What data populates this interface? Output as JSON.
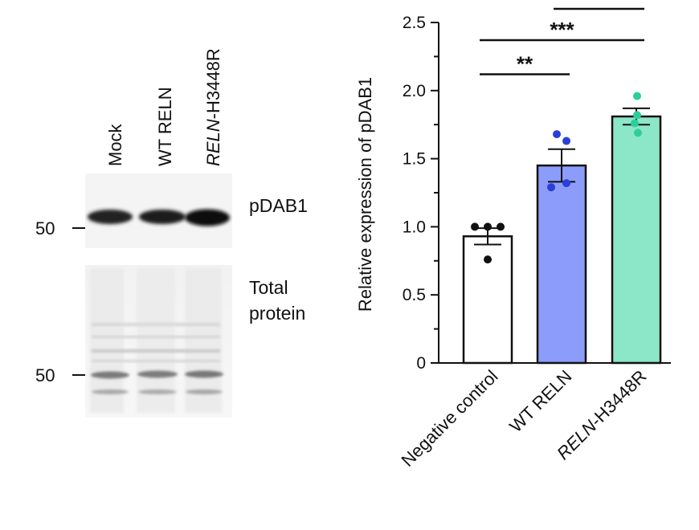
{
  "blot": {
    "lanes": [
      {
        "label": "Mock",
        "italic_part": "",
        "plain_part": "Mock"
      },
      {
        "label": "WT RELN",
        "italic_part": "",
        "plain_part": "WT RELN"
      },
      {
        "label": "RELN-H3448R",
        "italic_part": "RELN",
        "plain_part": "-H3448R"
      }
    ],
    "panels": [
      {
        "label": "pDAB1",
        "marker": "50"
      },
      {
        "label_line1": "Total",
        "label_line2": "protein",
        "marker": "50"
      }
    ]
  },
  "chart_data": {
    "type": "bar",
    "categories": [
      "Negative control",
      "WT RELN",
      "RELN-H3448R"
    ],
    "category_italic_parts": [
      "",
      "",
      "RELN"
    ],
    "category_plain_parts": [
      "Negative control",
      "WT RELN",
      "-H3448R"
    ],
    "values": [
      0.93,
      1.45,
      1.81
    ],
    "errors": [
      0.06,
      0.12,
      0.06
    ],
    "points": [
      [
        1.0,
        1.0,
        1.0,
        0.76
      ],
      [
        1.68,
        1.63,
        1.32,
        1.29
      ],
      [
        1.96,
        1.82,
        1.76,
        1.69
      ]
    ],
    "bar_colors": [
      "#ffffff",
      "#8c9cfa",
      "#8ce6c8"
    ],
    "point_colors": [
      "#111111",
      "#2b3fd6",
      "#2bcf9a"
    ],
    "ylabel": "Relative expression of pDAB1",
    "xlabel": "",
    "ylim": [
      0,
      2.5
    ],
    "yticks": [
      "0",
      "0.5",
      "1.0",
      "1.5",
      "2.0",
      "2.5"
    ],
    "ytick_values": [
      0,
      0.5,
      1.0,
      1.5,
      2.0,
      2.5
    ],
    "significance": [
      {
        "from": 0,
        "to": 1,
        "label": "**",
        "level": 2.12
      },
      {
        "from": 0,
        "to": 2,
        "label": "***",
        "level": 2.37
      },
      {
        "from": 1,
        "to": 2,
        "label": "*",
        "level": 2.6
      }
    ],
    "grid": false
  }
}
